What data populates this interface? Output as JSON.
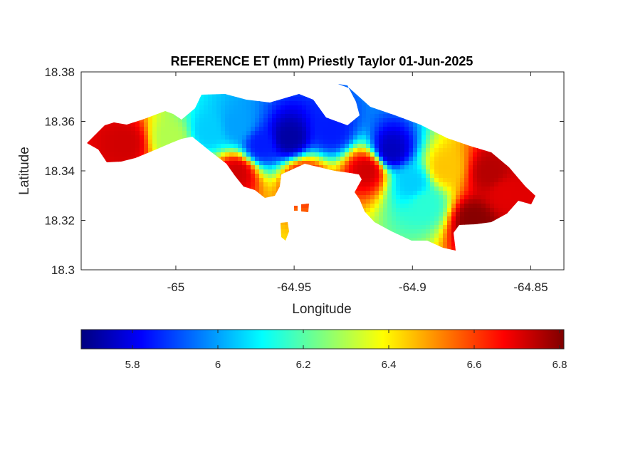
{
  "chart_data": {
    "type": "heatmap",
    "title": "REFERENCE ET (mm) Priestly Taylor 01-Jun-2025",
    "xlabel": "Longitude",
    "ylabel": "Latitude",
    "xlim": [
      -65.04,
      -64.836
    ],
    "ylim": [
      18.3,
      18.38
    ],
    "xticks": [
      -65,
      -64.95,
      -64.9,
      -64.85
    ],
    "xtick_labels": [
      "-65",
      "-64.95",
      "-64.9",
      "-64.85"
    ],
    "yticks": [
      18.3,
      18.32,
      18.34,
      18.36,
      18.38
    ],
    "ytick_labels": [
      "18.3",
      "18.32",
      "18.34",
      "18.36",
      "18.38"
    ],
    "grid": false,
    "colormap": "jet",
    "colorbar": {
      "orientation": "horizontal",
      "location": "bottom",
      "range": [
        5.68,
        6.81
      ],
      "ticks": [
        5.8,
        6,
        6.2,
        6.4,
        6.6,
        6.8
      ],
      "tick_labels": [
        "5.8",
        "6",
        "6.2",
        "6.4",
        "6.6",
        "6.8"
      ]
    },
    "colors": {
      "jet_stops": [
        "#00007f",
        "#0000ff",
        "#007fff",
        "#00ffff",
        "#7fff7f",
        "#ffff00",
        "#ff7f00",
        "#ff0000",
        "#7f0000"
      ]
    },
    "value_centers": [
      {
        "lon": -64.953,
        "lat": 18.354,
        "value": 5.72
      },
      {
        "lon": -64.91,
        "lat": 18.349,
        "value": 5.75
      },
      {
        "lon": -64.935,
        "lat": 18.357,
        "value": 5.85
      },
      {
        "lon": -64.965,
        "lat": 18.351,
        "value": 5.85
      },
      {
        "lon": -64.975,
        "lat": 18.359,
        "value": 6.0
      },
      {
        "lon": -64.987,
        "lat": 18.357,
        "value": 6.05
      },
      {
        "lon": -64.901,
        "lat": 18.336,
        "value": 6.05
      },
      {
        "lon": -64.895,
        "lat": 18.327,
        "value": 6.15
      },
      {
        "lon": -65.003,
        "lat": 18.354,
        "value": 6.3
      },
      {
        "lon": -64.887,
        "lat": 18.342,
        "value": 6.45
      },
      {
        "lon": -65.022,
        "lat": 18.352,
        "value": 6.72
      },
      {
        "lon": -64.975,
        "lat": 18.34,
        "value": 6.72
      },
      {
        "lon": -64.92,
        "lat": 18.341,
        "value": 6.72
      },
      {
        "lon": -64.875,
        "lat": 18.321,
        "value": 6.8
      },
      {
        "lon": -64.868,
        "lat": 18.34,
        "value": 6.75
      },
      {
        "lon": -64.862,
        "lat": 18.332,
        "value": 6.7
      },
      {
        "lon": -64.947,
        "lat": 18.338,
        "value": 6.65
      }
    ]
  }
}
